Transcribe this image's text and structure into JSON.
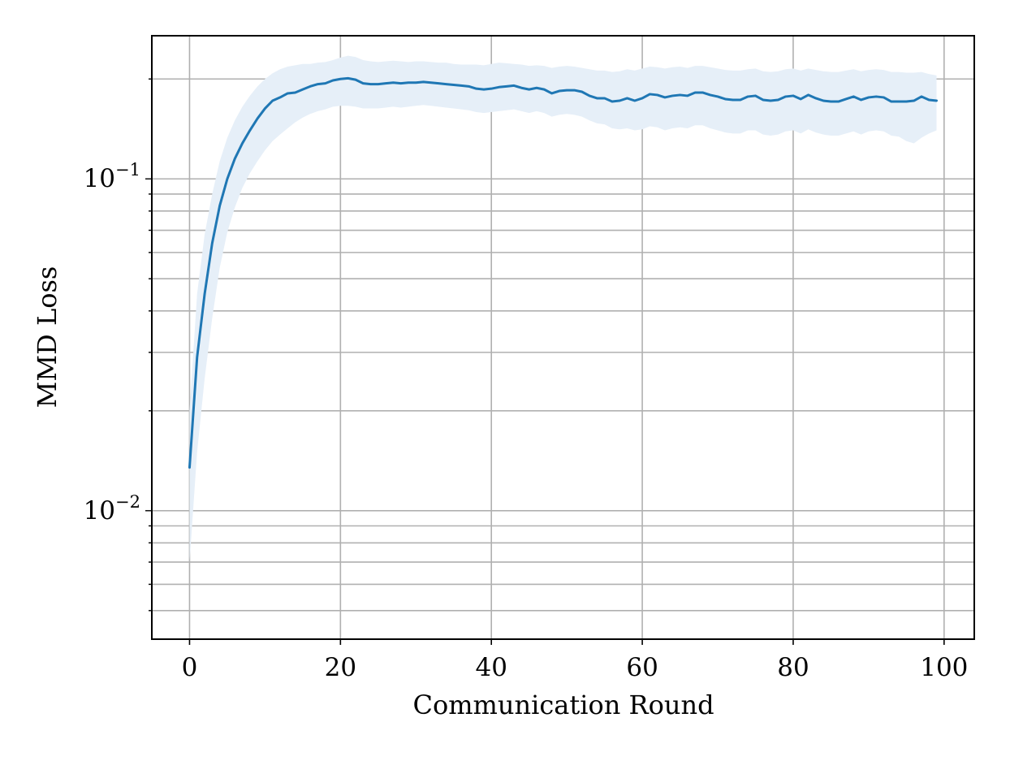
{
  "chart_data": {
    "type": "line",
    "title": "",
    "xlabel": "Communication Round",
    "ylabel": "MMD Loss",
    "xlim": [
      -5,
      104
    ],
    "ylim": [
      0.0041,
      0.27
    ],
    "yscale": "log",
    "grid": "on (major and minor)",
    "legend": "none",
    "x_ticks": [
      0,
      20,
      40,
      60,
      80,
      100
    ],
    "y_ticks": [
      {
        "value": 0.1,
        "base": "10",
        "exponent": "−1"
      },
      {
        "value": 0.01,
        "base": "10",
        "exponent": "−2"
      }
    ],
    "line_color": "#1f77b4",
    "band_color": "#e6eff8",
    "series": [
      {
        "x": [
          0,
          1,
          2,
          3,
          4,
          5,
          6,
          7,
          8,
          9,
          10,
          11,
          12,
          13,
          14,
          15,
          16,
          17,
          18,
          19,
          20,
          21,
          22,
          23,
          24,
          25,
          26,
          27,
          28,
          29,
          30,
          31,
          32,
          33,
          34,
          35,
          36,
          37,
          38,
          39,
          40,
          41,
          42,
          43,
          44,
          45,
          46,
          47,
          48,
          49,
          50,
          51,
          52,
          53,
          54,
          55,
          56,
          57,
          58,
          59,
          60,
          61,
          62,
          63,
          64,
          65,
          66,
          67,
          68,
          69,
          70,
          71,
          72,
          73,
          74,
          75,
          76,
          77,
          78,
          79,
          80,
          81,
          82,
          83,
          84,
          85,
          86,
          87,
          88,
          89,
          90,
          91,
          92,
          93,
          94,
          95,
          96,
          97,
          98,
          99
        ],
        "mean": [
          0.0135,
          0.029,
          0.045,
          0.064,
          0.083,
          0.1,
          0.115,
          0.128,
          0.14,
          0.152,
          0.163,
          0.172,
          0.176,
          0.181,
          0.182,
          0.186,
          0.19,
          0.193,
          0.194,
          0.198,
          0.2,
          0.201,
          0.199,
          0.194,
          0.193,
          0.193,
          0.194,
          0.195,
          0.194,
          0.195,
          0.195,
          0.196,
          0.195,
          0.194,
          0.193,
          0.192,
          0.191,
          0.19,
          0.187,
          0.186,
          0.187,
          0.189,
          0.19,
          0.191,
          0.188,
          0.186,
          0.188,
          0.186,
          0.181,
          0.184,
          0.185,
          0.185,
          0.183,
          0.178,
          0.175,
          0.175,
          0.171,
          0.172,
          0.175,
          0.172,
          0.175,
          0.18,
          0.179,
          0.176,
          0.178,
          0.179,
          0.178,
          0.182,
          0.182,
          0.179,
          0.177,
          0.174,
          0.173,
          0.173,
          0.177,
          0.178,
          0.173,
          0.172,
          0.173,
          0.177,
          0.178,
          0.174,
          0.179,
          0.175,
          0.172,
          0.171,
          0.171,
          0.174,
          0.177,
          0.173,
          0.176,
          0.177,
          0.176,
          0.171,
          0.171,
          0.171,
          0.172,
          0.177,
          0.173,
          0.172
        ],
        "upper": [
          0.02,
          0.045,
          0.068,
          0.09,
          0.113,
          0.133,
          0.15,
          0.165,
          0.178,
          0.19,
          0.2,
          0.208,
          0.214,
          0.218,
          0.22,
          0.222,
          0.222,
          0.224,
          0.225,
          0.228,
          0.232,
          0.235,
          0.233,
          0.228,
          0.226,
          0.225,
          0.226,
          0.227,
          0.226,
          0.225,
          0.226,
          0.226,
          0.225,
          0.224,
          0.224,
          0.222,
          0.221,
          0.221,
          0.221,
          0.22,
          0.222,
          0.224,
          0.223,
          0.222,
          0.221,
          0.219,
          0.22,
          0.219,
          0.216,
          0.218,
          0.219,
          0.218,
          0.216,
          0.214,
          0.212,
          0.212,
          0.21,
          0.211,
          0.214,
          0.212,
          0.215,
          0.218,
          0.217,
          0.215,
          0.217,
          0.218,
          0.216,
          0.219,
          0.219,
          0.217,
          0.215,
          0.213,
          0.212,
          0.212,
          0.214,
          0.215,
          0.211,
          0.21,
          0.211,
          0.214,
          0.215,
          0.212,
          0.215,
          0.213,
          0.211,
          0.21,
          0.21,
          0.212,
          0.214,
          0.211,
          0.213,
          0.214,
          0.213,
          0.21,
          0.21,
          0.209,
          0.209,
          0.21,
          0.207,
          0.205
        ],
        "lower": [
          0.007,
          0.015,
          0.025,
          0.038,
          0.054,
          0.069,
          0.082,
          0.094,
          0.104,
          0.113,
          0.122,
          0.13,
          0.136,
          0.142,
          0.148,
          0.153,
          0.157,
          0.16,
          0.162,
          0.165,
          0.166,
          0.166,
          0.165,
          0.163,
          0.163,
          0.163,
          0.164,
          0.165,
          0.164,
          0.165,
          0.166,
          0.167,
          0.166,
          0.165,
          0.164,
          0.163,
          0.162,
          0.161,
          0.159,
          0.158,
          0.159,
          0.16,
          0.161,
          0.162,
          0.16,
          0.158,
          0.16,
          0.158,
          0.154,
          0.156,
          0.157,
          0.156,
          0.154,
          0.15,
          0.147,
          0.146,
          0.142,
          0.141,
          0.142,
          0.14,
          0.141,
          0.144,
          0.143,
          0.14,
          0.142,
          0.143,
          0.142,
          0.145,
          0.145,
          0.142,
          0.14,
          0.138,
          0.137,
          0.137,
          0.14,
          0.14,
          0.136,
          0.135,
          0.136,
          0.139,
          0.14,
          0.137,
          0.141,
          0.138,
          0.136,
          0.135,
          0.135,
          0.137,
          0.139,
          0.136,
          0.139,
          0.14,
          0.139,
          0.135,
          0.134,
          0.13,
          0.128,
          0.133,
          0.137,
          0.14
        ]
      }
    ]
  }
}
